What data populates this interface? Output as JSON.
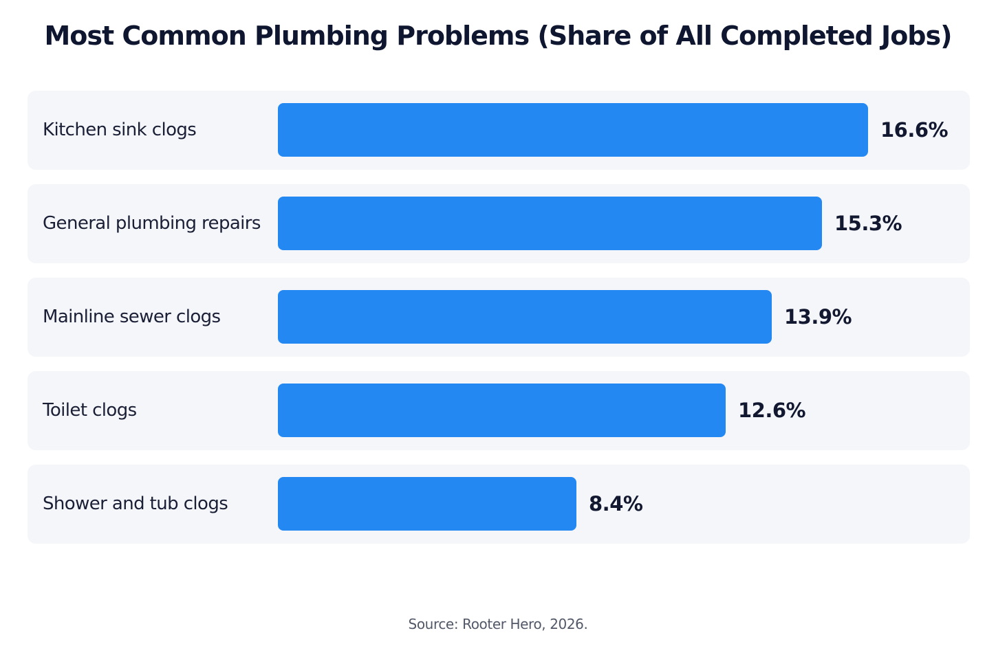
{
  "colors": {
    "bar": "#2488f3"
  },
  "chart_data": {
    "type": "bar",
    "orientation": "horizontal",
    "title": "Most Common Plumbing Problems (Share of All Completed Jobs)",
    "categories": [
      "Kitchen sink clogs",
      "General plumbing repairs",
      "Mainline sewer clogs",
      "Toilet clogs",
      "Shower and tub clogs"
    ],
    "values": [
      16.6,
      15.3,
      13.9,
      12.6,
      8.4
    ],
    "value_labels": [
      "16.6%",
      "15.3%",
      "13.9%",
      "12.6%",
      "8.4%"
    ],
    "xlim": [
      0,
      16.6
    ],
    "grid": false,
    "legend": "none"
  },
  "source": "Source: Rooter Hero, 2026."
}
